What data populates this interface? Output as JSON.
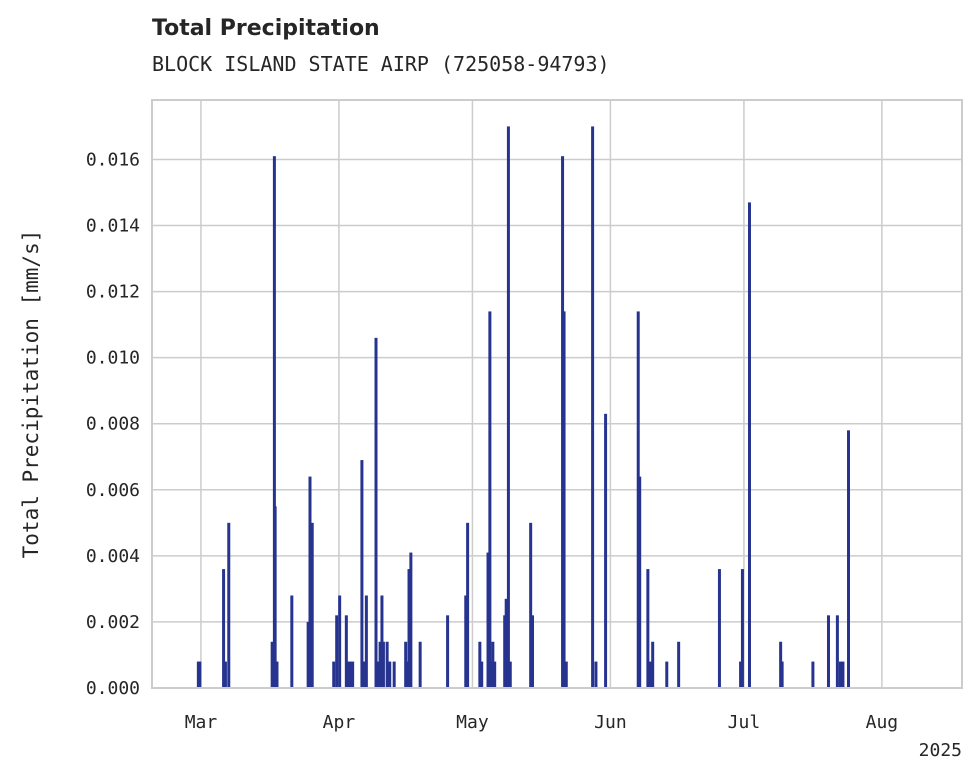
{
  "chart_data": {
    "type": "bar",
    "title": "Total Precipitation",
    "subtitle": "BLOCK ISLAND STATE AIRP (725058-94793)",
    "xlabel": "",
    "ylabel": "Total Precipitation [mm/s]",
    "year_label": "2025",
    "x_ticks": [
      {
        "label": "Mar",
        "date": "2025-03-01"
      },
      {
        "label": "Apr",
        "date": "2025-04-01"
      },
      {
        "label": "May",
        "date": "2025-05-01"
      },
      {
        "label": "Jun",
        "date": "2025-06-01"
      },
      {
        "label": "Jul",
        "date": "2025-07-01"
      },
      {
        "label": "Aug",
        "date": "2025-08-01"
      }
    ],
    "y_ticks": [
      "0.000",
      "0.002",
      "0.004",
      "0.006",
      "0.008",
      "0.010",
      "0.012",
      "0.014",
      "0.016"
    ],
    "xlim": [
      "2025-02-18",
      "2025-08-19"
    ],
    "ylim": [
      0,
      0.0178
    ],
    "grid": true,
    "bar_color": "#26348f",
    "series": [
      {
        "x": [
          "2025-02-28T10:00",
          "2025-02-28T18:00",
          "2025-03-06T02:00",
          "2025-03-06T12:00",
          "2025-03-07T06:00",
          "2025-03-17T00:00",
          "2025-03-17T12:00",
          "2025-03-17T16:00",
          "2025-03-18T02:00",
          "2025-03-21T10:00",
          "2025-03-25T02:00",
          "2025-03-25T12:00",
          "2025-03-26T00:00",
          "2025-03-30T20:00",
          "2025-03-31T12:00",
          "2025-04-01T04:00",
          "2025-04-02T16:00",
          "2025-04-02T22:00",
          "2025-04-03T12:00",
          "2025-04-04T02:00",
          "2025-04-06T04:00",
          "2025-04-06T14:00",
          "2025-04-07T04:00",
          "2025-04-09T08:00",
          "2025-04-09T18:00",
          "2025-04-10T06:00",
          "2025-04-10T16:00",
          "2025-04-11T00:00",
          "2025-04-11T20:00",
          "2025-04-12T10:00",
          "2025-04-13T10:00",
          "2025-04-16T00:00",
          "2025-04-16T10:00",
          "2025-04-16T18:00",
          "2025-04-17T04:00",
          "2025-04-19T06:00",
          "2025-04-25T10:00",
          "2025-04-29T12:00",
          "2025-04-29T22:00",
          "2025-05-02T16:00",
          "2025-05-03T02:00",
          "2025-05-04T12:00",
          "2025-05-04T22:00",
          "2025-05-05T06:00",
          "2025-05-05T14:00",
          "2025-05-06T00:00",
          "2025-05-08T06:00",
          "2025-05-08T14:00",
          "2025-05-09T02:00",
          "2025-05-09T12:00",
          "2025-05-14T02:00",
          "2025-05-14T12:00",
          "2025-05-21T06:00",
          "2025-05-21T14:00",
          "2025-05-22T02:00",
          "2025-05-28T00:00",
          "2025-05-28T18:00",
          "2025-05-30T22:00",
          "2025-06-07T06:00",
          "2025-06-07T14:00",
          "2025-06-09T10:00",
          "2025-06-09T22:00",
          "2025-06-10T12:00",
          "2025-06-13T16:00",
          "2025-06-16T08:00",
          "2025-06-25T12:00",
          "2025-06-30T06:00",
          "2025-06-30T16:00",
          "2025-07-02T06:00",
          "2025-07-09T06:00",
          "2025-07-09T14:00",
          "2025-07-16T12:00",
          "2025-07-20T00:00",
          "2025-07-22T00:00",
          "2025-07-22T16:00",
          "2025-07-23T06:00",
          "2025-07-24T12:00"
        ],
        "values": [
          0.0008,
          0.0008,
          0.0036,
          0.0008,
          0.005,
          0.0014,
          0.0161,
          0.0055,
          0.0008,
          0.0028,
          0.002,
          0.0064,
          0.005,
          0.0008,
          0.0022,
          0.0028,
          0.0022,
          0.0008,
          0.0008,
          0.0008,
          0.0069,
          0.0008,
          0.0028,
          0.0106,
          0.0008,
          0.0014,
          0.0028,
          0.0014,
          0.0014,
          0.0008,
          0.0008,
          0.0014,
          0.0008,
          0.0036,
          0.0041,
          0.0014,
          0.0022,
          0.0028,
          0.005,
          0.0014,
          0.0008,
          0.0041,
          0.0114,
          0.0008,
          0.0014,
          0.0008,
          0.0022,
          0.0027,
          0.017,
          0.0008,
          0.005,
          0.0022,
          0.0161,
          0.0114,
          0.0008,
          0.017,
          0.0008,
          0.0083,
          0.0114,
          0.0064,
          0.0036,
          0.0008,
          0.0014,
          0.0008,
          0.0014,
          0.0036,
          0.0008,
          0.0036,
          0.0147,
          0.0014,
          0.0008,
          0.0008,
          0.0022,
          0.0022,
          0.0008,
          0.0008,
          0.0078
        ]
      }
    ]
  }
}
